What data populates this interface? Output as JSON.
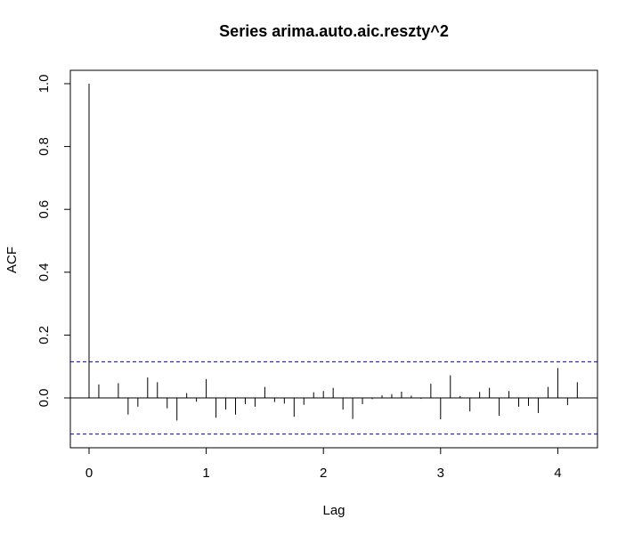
{
  "chart_data": {
    "type": "bar",
    "subtype": "acf-spike",
    "title": "Series  arima.auto.aic.reszty^2",
    "xlabel": "Lag",
    "ylabel": "ACF",
    "xlim": [
      -0.1,
      4.33
    ],
    "ylim": [
      -0.155,
      1.0
    ],
    "xticks": [
      0,
      1,
      2,
      3,
      4
    ],
    "xtick_labels": [
      "0",
      "1",
      "2",
      "3",
      "4"
    ],
    "yticks": [
      0.0,
      0.2,
      0.4,
      0.6,
      0.8,
      1.0
    ],
    "ytick_labels": [
      "0.0",
      "0.2",
      "0.4",
      "0.6",
      "0.8",
      "1.0"
    ],
    "confidence_bound": 0.115,
    "confidence_color": "#0000cd",
    "grid": false,
    "legend": "none",
    "series": [
      {
        "values": [
          [
            0.0,
            1.0
          ],
          [
            0.0833,
            0.043
          ],
          [
            0.1667,
            0.0
          ],
          [
            0.25,
            0.047
          ],
          [
            0.3333,
            -0.053
          ],
          [
            0.4167,
            -0.028
          ],
          [
            0.5,
            0.065
          ],
          [
            0.5833,
            0.05
          ],
          [
            0.6667,
            -0.033
          ],
          [
            0.75,
            -0.072
          ],
          [
            0.8333,
            0.015
          ],
          [
            0.9167,
            -0.012
          ],
          [
            1.0,
            0.06
          ],
          [
            1.0833,
            -0.063
          ],
          [
            1.1667,
            -0.037
          ],
          [
            1.25,
            -0.053
          ],
          [
            1.3333,
            -0.02
          ],
          [
            1.4167,
            -0.028
          ],
          [
            1.5,
            0.035
          ],
          [
            1.5833,
            -0.013
          ],
          [
            1.6667,
            -0.018
          ],
          [
            1.75,
            -0.06
          ],
          [
            1.8333,
            -0.022
          ],
          [
            1.9167,
            0.018
          ],
          [
            2.0,
            0.022
          ],
          [
            2.0833,
            0.032
          ],
          [
            2.1667,
            -0.037
          ],
          [
            2.25,
            -0.067
          ],
          [
            2.3333,
            -0.02
          ],
          [
            2.4167,
            -0.004
          ],
          [
            2.5,
            0.008
          ],
          [
            2.5833,
            0.012
          ],
          [
            2.6667,
            0.02
          ],
          [
            2.75,
            0.007
          ],
          [
            2.8333,
            -0.003
          ],
          [
            2.9167,
            0.045
          ],
          [
            3.0,
            -0.068
          ],
          [
            3.0833,
            0.072
          ],
          [
            3.1667,
            0.006
          ],
          [
            3.25,
            -0.043
          ],
          [
            3.3333,
            0.019
          ],
          [
            3.4167,
            0.032
          ],
          [
            3.5,
            -0.057
          ],
          [
            3.5833,
            0.022
          ],
          [
            3.6667,
            -0.028
          ],
          [
            3.75,
            -0.025
          ],
          [
            3.8333,
            -0.048
          ],
          [
            3.9167,
            0.035
          ],
          [
            4.0,
            0.095
          ],
          [
            4.0833,
            -0.023
          ],
          [
            4.1667,
            0.05
          ]
        ]
      }
    ]
  }
}
